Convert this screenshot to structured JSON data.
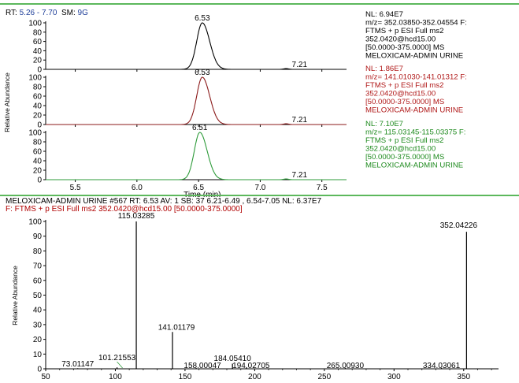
{
  "header": {
    "rt_label": "RT:",
    "rt_range": "5.26 - 7.70",
    "sm_label": "SM:",
    "sm_value": "9G"
  },
  "colors": {
    "trace1": "#000000",
    "trace2": "#8b1a1a",
    "trace3": "#2e9b3a",
    "info2": "#b01818",
    "info3": "#1d8a1d",
    "rule": "#5cb85c",
    "header_blue": "#1f3f99"
  },
  "chromatograms": {
    "ylabel": "Relative Abundance",
    "xlabel": "Time (min)",
    "xlim": [
      5.26,
      7.7
    ],
    "xticks": [
      "5.5",
      "6.0",
      "6.5",
      "7.0",
      "7.5"
    ],
    "ylim": [
      0,
      100
    ],
    "yticks": [
      "0",
      "20",
      "40",
      "60",
      "80",
      "100"
    ],
    "panels": [
      {
        "peak_rt": 6.53,
        "peak_label": "6.53",
        "minor_rt": 7.21,
        "minor_label": "7.21",
        "color_key": "trace1",
        "info": [
          "NL: 6.94E7",
          "m/z= 352.03850-352.04554 F:",
          "FTMS + p ESI Full ms2",
          "352.0420@hcd15.00",
          "[50.0000-375.0000]  MS",
          "MELOXICAM-ADMIN URINE"
        ],
        "info_color_key": "trace1"
      },
      {
        "peak_rt": 6.53,
        "peak_label": "6.53",
        "minor_rt": 7.21,
        "minor_label": "7.21",
        "color_key": "trace2",
        "info": [
          "NL: 1.86E7",
          "m/z= 141.01030-141.01312 F:",
          "FTMS + p ESI Full ms2",
          "352.0420@hcd15.00",
          "[50.0000-375.0000]  MS",
          "MELOXICAM-ADMIN URINE"
        ],
        "info_color_key": "info2"
      },
      {
        "peak_rt": 6.51,
        "peak_label": "6.51",
        "minor_rt": 7.21,
        "minor_label": "7.21",
        "color_key": "trace3",
        "info": [
          "NL: 7.10E7",
          "m/z= 115.03145-115.03375 F:",
          "FTMS + p ESI Full ms2",
          "352.0420@hcd15.00",
          "[50.0000-375.0000]  MS",
          "MELOXICAM-ADMIN URINE"
        ],
        "info_color_key": "info3"
      }
    ]
  },
  "spectrum_header": {
    "line1": "MELOXICAM-ADMIN URINE #567  RT: 6.53  AV: 1  SB: 37  6.21-6.49 , 6.54-7.05  NL: 6.37E7",
    "line2": "F: FTMS + p ESI Full ms2 352.0420@hcd15.00 [50.0000-375.0000]"
  },
  "chart_data": {
    "type": "bar",
    "ylabel": "Relative Abundance",
    "xlabel": "",
    "xlim": [
      50,
      375
    ],
    "ylim": [
      0,
      100
    ],
    "xticks": [
      "50",
      "100",
      "150",
      "200",
      "250",
      "300",
      "350"
    ],
    "yticks": [
      "0",
      "10",
      "20",
      "30",
      "40",
      "50",
      "60",
      "70",
      "80",
      "90",
      "100"
    ],
    "peaks": [
      {
        "mz": 73.01147,
        "intensity": 0.4,
        "label": "73.01147"
      },
      {
        "mz": 101.21553,
        "intensity": 1.0,
        "label": "101.21553"
      },
      {
        "mz": 115.03285,
        "intensity": 100,
        "label": "115.03285"
      },
      {
        "mz": 141.01179,
        "intensity": 25,
        "label": "141.01179"
      },
      {
        "mz": 158.00047,
        "intensity": 0.5,
        "label": "158.00047"
      },
      {
        "mz": 184.0541,
        "intensity": 3.5,
        "label": "184.05410"
      },
      {
        "mz": 194.02705,
        "intensity": 0.8,
        "label": "194.02705"
      },
      {
        "mz": 265.0093,
        "intensity": 0.5,
        "label": "265.00930"
      },
      {
        "mz": 334.03061,
        "intensity": 0.5,
        "label": "334.03061"
      },
      {
        "mz": 352.04226,
        "intensity": 93,
        "label": "352.04226"
      }
    ]
  }
}
